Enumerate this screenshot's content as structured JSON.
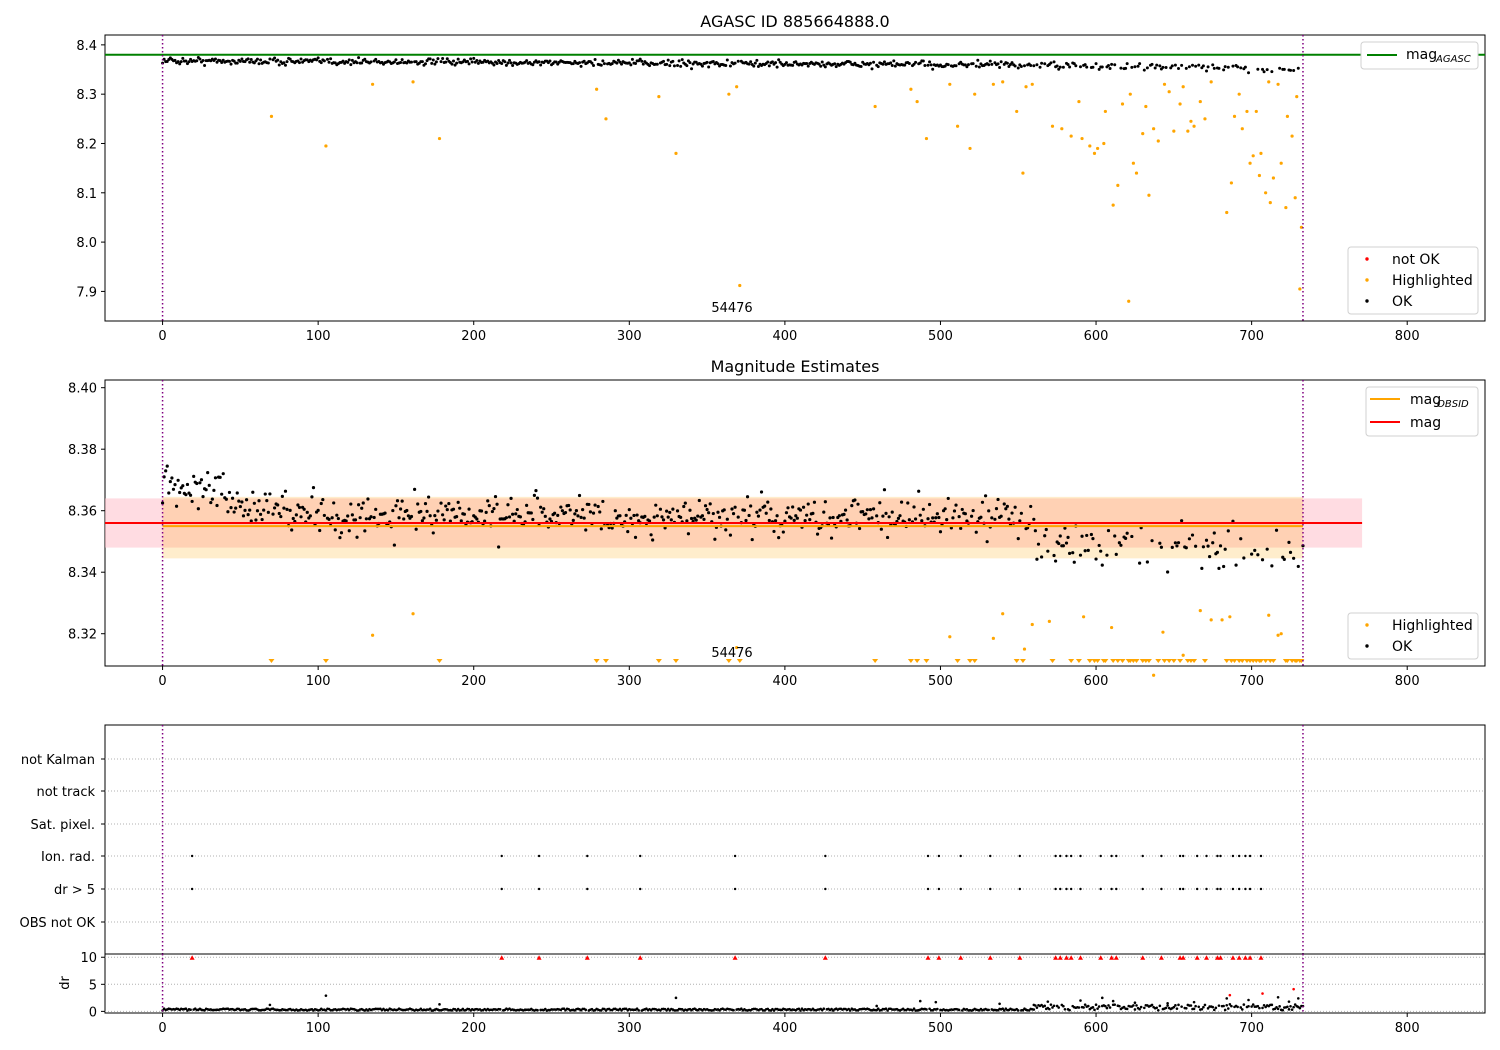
{
  "colors": {
    "ok": "#000000",
    "highlighted": "#ffa500",
    "not_ok": "#ff0000",
    "mag_agasc": "#008000",
    "mag_obsid": "#ffa500",
    "mag": "#ff0000",
    "obs_boundary": "#800080",
    "grid": "#b0b0b0"
  },
  "obsid_label": "54476",
  "chart_data": [
    {
      "type": "scatter",
      "title": "AGASC ID 885664888.0",
      "xlim": [
        -37,
        850
      ],
      "ylim": [
        7.84,
        8.42
      ],
      "xticks": [
        "0",
        "100",
        "200",
        "300",
        "400",
        "500",
        "600",
        "700",
        "800"
      ],
      "yticks": [
        "7.9",
        "8.0",
        "8.1",
        "8.2",
        "8.3",
        "8.4"
      ],
      "obs_boundaries": [
        0,
        733
      ],
      "mag_agasc": 8.38,
      "legend_top": {
        "position": "upper right",
        "line": "mag",
        "subscript": "AGASC"
      },
      "legend_bottom": {
        "position": "lower right",
        "entries": [
          "not OK",
          "Highlighted",
          "OK"
        ]
      },
      "highlighted_points": [
        [
          70,
          8.255
        ],
        [
          105,
          8.195
        ],
        [
          135,
          8.32
        ],
        [
          161,
          8.325
        ],
        [
          178,
          8.21
        ],
        [
          279,
          8.31
        ],
        [
          285,
          8.25
        ],
        [
          319,
          8.295
        ],
        [
          330,
          8.18
        ],
        [
          364,
          8.3
        ],
        [
          369,
          8.315
        ],
        [
          371,
          7.912
        ],
        [
          458,
          8.275
        ],
        [
          481,
          8.31
        ],
        [
          485,
          8.285
        ],
        [
          491,
          8.21
        ],
        [
          506,
          8.32
        ],
        [
          511,
          8.235
        ],
        [
          519,
          8.19
        ],
        [
          522,
          8.3
        ],
        [
          534,
          8.32
        ],
        [
          540,
          8.325
        ],
        [
          549,
          8.265
        ],
        [
          553,
          8.14
        ],
        [
          555,
          8.315
        ],
        [
          559,
          8.32
        ],
        [
          572,
          8.235
        ],
        [
          578,
          8.23
        ],
        [
          584,
          8.215
        ],
        [
          589,
          8.285
        ],
        [
          591,
          8.21
        ],
        [
          596,
          8.195
        ],
        [
          599,
          8.18
        ],
        [
          601,
          8.19
        ],
        [
          605,
          8.2
        ],
        [
          606,
          8.265
        ],
        [
          611,
          8.075
        ],
        [
          614,
          8.115
        ],
        [
          617,
          8.28
        ],
        [
          621,
          7.88
        ],
        [
          622,
          8.3
        ],
        [
          624,
          8.16
        ],
        [
          626,
          8.14
        ],
        [
          630,
          8.22
        ],
        [
          632,
          8.275
        ],
        [
          634,
          8.095
        ],
        [
          637,
          8.23
        ],
        [
          640,
          8.205
        ],
        [
          644,
          8.32
        ],
        [
          647,
          8.305
        ],
        [
          650,
          8.225
        ],
        [
          654,
          8.28
        ],
        [
          656,
          8.315
        ],
        [
          659,
          8.225
        ],
        [
          661,
          8.245
        ],
        [
          663,
          8.235
        ],
        [
          667,
          8.285
        ],
        [
          670,
          8.25
        ],
        [
          674,
          8.325
        ],
        [
          684,
          8.06
        ],
        [
          687,
          8.12
        ],
        [
          689,
          8.255
        ],
        [
          692,
          8.3
        ],
        [
          694,
          8.23
        ],
        [
          697,
          8.265
        ],
        [
          699,
          8.16
        ],
        [
          701,
          8.175
        ],
        [
          703,
          8.265
        ],
        [
          705,
          8.135
        ],
        [
          706,
          8.18
        ],
        [
          709,
          8.1
        ],
        [
          711,
          8.325
        ],
        [
          712,
          8.08
        ],
        [
          714,
          8.13
        ],
        [
          717,
          8.32
        ],
        [
          719,
          8.16
        ],
        [
          722,
          8.07
        ],
        [
          723,
          8.255
        ],
        [
          726,
          8.215
        ],
        [
          728,
          8.09
        ],
        [
          729,
          8.295
        ],
        [
          731,
          7.905
        ],
        [
          732,
          8.03
        ]
      ]
    },
    {
      "type": "scatter",
      "title": "Magnitude Estimates",
      "xlim": [
        -37,
        850
      ],
      "ylim": [
        8.3095,
        8.4025
      ],
      "xticks": [
        "0",
        "100",
        "200",
        "300",
        "400",
        "500",
        "600",
        "700",
        "800"
      ],
      "yticks": [
        "8.32",
        "8.34",
        "8.36",
        "8.38",
        "8.40"
      ],
      "obs_boundaries": [
        0,
        733
      ],
      "mag_obsid": 8.355,
      "mag_obsid_band": [
        8.3445,
        8.3645
      ],
      "mag_obsid_span": [
        0,
        733
      ],
      "mag": 8.356,
      "mag_band": [
        8.348,
        8.364
      ],
      "mag_span": [
        -37,
        771
      ],
      "legend_top": {
        "position": "upper right",
        "entries": [
          {
            "label": "mag",
            "subscript": "OBSID"
          },
          {
            "label": "mag"
          }
        ]
      },
      "legend_bottom": {
        "position": "lower right",
        "entries": [
          "Highlighted",
          "OK"
        ]
      },
      "highlighted_points": [
        [
          135,
          8.3195
        ],
        [
          161,
          8.3265
        ],
        [
          369,
          8.3155
        ],
        [
          506,
          8.319
        ],
        [
          534,
          8.3185
        ],
        [
          540,
          8.3265
        ],
        [
          554,
          8.315
        ],
        [
          559,
          8.323
        ],
        [
          570,
          8.324
        ],
        [
          592,
          8.3255
        ],
        [
          610,
          8.322
        ],
        [
          637,
          8.3065
        ],
        [
          643,
          8.3205
        ],
        [
          656,
          8.313
        ],
        [
          667,
          8.3275
        ],
        [
          674,
          8.3245
        ],
        [
          681,
          8.3245
        ],
        [
          686,
          8.3255
        ],
        [
          711,
          8.326
        ],
        [
          717,
          8.3195
        ],
        [
          719,
          8.32
        ]
      ],
      "highlighted_below_range_x": [
        70,
        105,
        178,
        279,
        285,
        319,
        330,
        364,
        371,
        458,
        481,
        485,
        491,
        511,
        519,
        522,
        549,
        553,
        572,
        584,
        589,
        596,
        599,
        601,
        605,
        606,
        611,
        614,
        617,
        621,
        622,
        624,
        626,
        630,
        632,
        634,
        640,
        644,
        647,
        650,
        654,
        659,
        661,
        663,
        670,
        684,
        687,
        689,
        692,
        694,
        697,
        699,
        701,
        703,
        705,
        706,
        709,
        712,
        714,
        722,
        723,
        726,
        728,
        729,
        731,
        732
      ]
    },
    {
      "type": "scatter",
      "panel": "flags",
      "xlim": [
        -37,
        850
      ],
      "categories": [
        "not Kalman",
        "not track",
        "Sat. pixel.",
        "Ion. rad.",
        "dr > 5",
        "OBS not OK"
      ],
      "obs_boundaries": [
        0,
        733
      ],
      "flag_x": [
        19,
        218,
        242,
        273,
        307,
        368,
        426,
        492,
        499,
        513,
        532,
        551,
        574,
        577,
        581,
        584,
        590,
        603,
        610,
        613,
        630,
        642,
        654,
        656,
        665,
        671,
        678,
        680,
        688,
        692,
        696,
        699,
        706
      ]
    },
    {
      "type": "scatter",
      "panel": "dr",
      "xlim": [
        -37,
        850
      ],
      "ylabel": "dr",
      "ylim": [
        -0.3,
        10.6
      ],
      "yticks": [
        "0",
        "5",
        "10"
      ],
      "obs_boundaries": [
        0,
        733
      ],
      "outlier_points": [
        [
          69,
          1.2
        ],
        [
          105,
          2.9
        ],
        [
          178,
          1.3
        ],
        [
          330,
          2.5
        ],
        [
          459,
          1.0
        ],
        [
          487,
          1.9
        ],
        [
          497,
          1.7
        ],
        [
          538,
          1.4
        ],
        [
          560,
          1.2
        ],
        [
          569,
          1.8
        ],
        [
          590,
          2.0
        ],
        [
          604,
          2.5
        ],
        [
          611,
          1.9
        ],
        [
          625,
          1.6
        ],
        [
          646,
          1.5
        ],
        [
          663,
          1.7
        ],
        [
          684,
          2.4
        ],
        [
          698,
          2.1
        ],
        [
          717,
          2.6
        ],
        [
          724,
          1.8
        ],
        [
          727,
          4.1
        ],
        [
          730,
          2.4
        ],
        [
          686,
          3.0
        ],
        [
          707,
          3.3
        ]
      ],
      "clipped_x": [
        19,
        218,
        242,
        273,
        307,
        368,
        426,
        492,
        499,
        513,
        532,
        551,
        574,
        577,
        581,
        584,
        590,
        603,
        610,
        613,
        630,
        642,
        654,
        656,
        665,
        671,
        678,
        680,
        688,
        692,
        696,
        699,
        706
      ]
    }
  ]
}
